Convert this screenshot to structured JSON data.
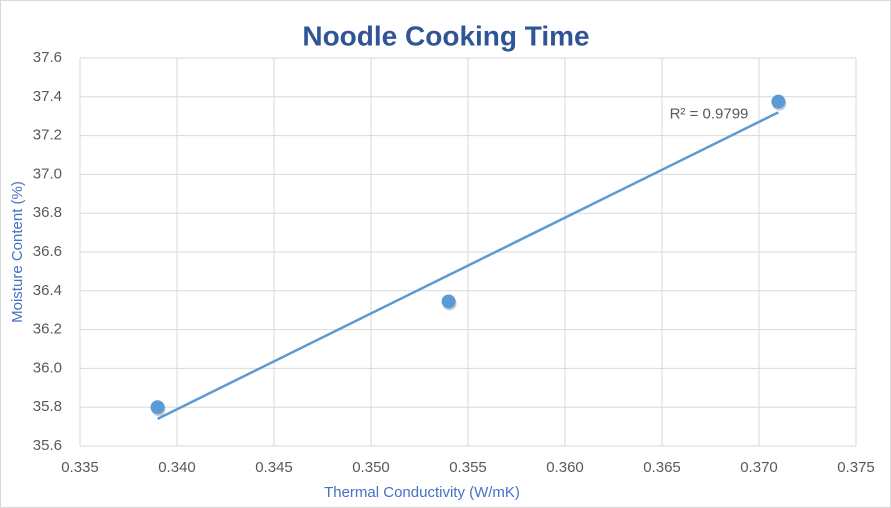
{
  "chart_data": {
    "type": "scatter",
    "title": "Noodle Cooking Time",
    "x_label": "Thermal Conductivity (W/mK)",
    "y_label": "Moisture Content (%)",
    "series": [
      {
        "name": "Moisture Content",
        "color": "#5b9bd5",
        "x": [
          0.339,
          0.354,
          0.371
        ],
        "values": [
          35.8,
          36.345,
          37.375
        ]
      }
    ],
    "trendline": {
      "color": "#5b9bd5",
      "x": [
        0.339,
        0.371
      ],
      "values": [
        35.74,
        37.32
      ],
      "label": "R² = 0.9799"
    },
    "xlim": [
      0.335,
      0.375
    ],
    "xticks": [
      0.335,
      {
        "value": 0.34,
        "label": "0.340"
      },
      0.345,
      {
        "value": 0.35,
        "label": "0.350"
      },
      0.355,
      {
        "value": 0.36,
        "label": "0.360"
      },
      0.365,
      {
        "value": 0.37,
        "label": "0.370"
      },
      0.375
    ],
    "ylim": [
      35.6,
      37.6
    ],
    "yticks": [
      35.6,
      35.8,
      {
        "value": 36,
        "label": "36.0"
      },
      36.2,
      36.4,
      36.6,
      36.8,
      {
        "value": 37,
        "label": "37.0"
      },
      37.2,
      37.4,
      37.6
    ],
    "grid": true
  }
}
